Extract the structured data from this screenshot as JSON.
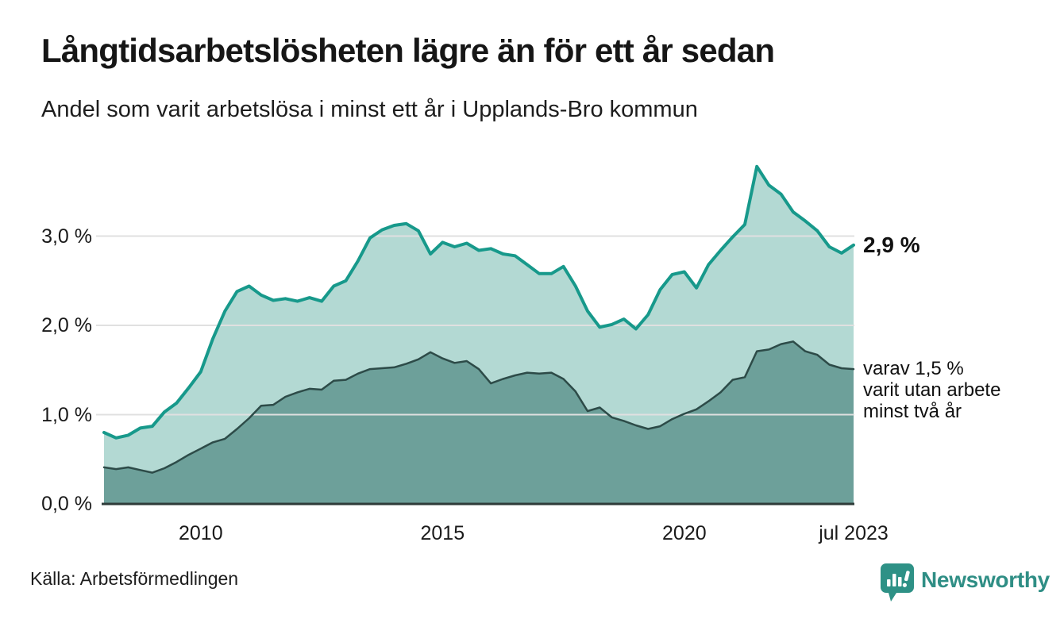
{
  "header": {
    "title": "Långtidsarbetslösheten lägre än för ett år sedan",
    "subtitle": "Andel som varit arbetslösa i minst ett år i Upplands-Bro kommun"
  },
  "annotations": {
    "end_value": "2,9 %",
    "note": "varav 1,5 %\nvarit utan arbete\nminst två år"
  },
  "footer": {
    "source": "Källa: Arbetsförmedlingen",
    "brand": "Newsworthy"
  },
  "colors": {
    "accent_teal": "#17998b",
    "fill_light": "#b3d9d3",
    "fill_dark": "#6da09a",
    "line_dark": "#2d4b48",
    "gridline": "#e0e0e0",
    "axis": "#2e3b39",
    "brand_teal": "#2e9186",
    "text": "#161616"
  },
  "chart_data": {
    "type": "area",
    "title": "Långtidsarbetslösheten lägre än för ett år sedan",
    "subtitle": "Andel som varit arbetslösa i minst ett år i Upplands-Bro kommun",
    "xlabel": "",
    "ylabel": "",
    "x_unit": "decimal_year",
    "x_range": [
      2008.0,
      2023.5
    ],
    "ylim": [
      0,
      3.9
    ],
    "grid": "horizontal",
    "legend_position": "none",
    "y_ticks": [
      {
        "label": "0,0 %",
        "value": 0
      },
      {
        "label": "1,0 %",
        "value": 1
      },
      {
        "label": "2,0 %",
        "value": 2
      },
      {
        "label": "3,0 %",
        "value": 3
      }
    ],
    "x_ticks": [
      {
        "label": "2010",
        "t": 2010
      },
      {
        "label": "2015",
        "t": 2015
      },
      {
        "label": "2020",
        "t": 2020
      },
      {
        "label": "jul 2023",
        "t": 2023.5
      }
    ],
    "x_start": 2008.0,
    "x_step_years": 0.25,
    "series": [
      {
        "name": "Andel arbetslösa minst ett år",
        "end_label": "2,9 %",
        "line_color": "#17998b",
        "fill_color": "#b3d9d3",
        "line_width": 4,
        "values": [
          0.8,
          0.74,
          0.77,
          0.85,
          0.87,
          1.03,
          1.13,
          1.3,
          1.48,
          1.85,
          2.16,
          2.38,
          2.44,
          2.34,
          2.28,
          2.3,
          2.27,
          2.31,
          2.27,
          2.44,
          2.5,
          2.72,
          2.98,
          3.07,
          3.12,
          3.14,
          3.06,
          2.8,
          2.93,
          2.88,
          2.92,
          2.84,
          2.86,
          2.8,
          2.78,
          2.68,
          2.58,
          2.58,
          2.66,
          2.44,
          2.16,
          1.98,
          2.01,
          2.07,
          1.96,
          2.12,
          2.4,
          2.57,
          2.6,
          2.42,
          2.68,
          2.84,
          2.99,
          3.13,
          3.78,
          3.57,
          3.47,
          3.27,
          3.17,
          3.06,
          2.88,
          2.81,
          2.9
        ]
      },
      {
        "name": "varav utan arbete minst två år",
        "end_label": "varav 1,5 % varit utan arbete minst två år",
        "line_color": "#2d4b48",
        "fill_color": "#6da09a",
        "line_width": 2.5,
        "values": [
          0.41,
          0.39,
          0.41,
          0.38,
          0.35,
          0.4,
          0.47,
          0.55,
          0.62,
          0.69,
          0.73,
          0.84,
          0.96,
          1.1,
          1.11,
          1.2,
          1.25,
          1.29,
          1.28,
          1.38,
          1.39,
          1.46,
          1.51,
          1.52,
          1.53,
          1.57,
          1.62,
          1.7,
          1.63,
          1.58,
          1.6,
          1.51,
          1.35,
          1.4,
          1.44,
          1.47,
          1.46,
          1.47,
          1.4,
          1.26,
          1.04,
          1.08,
          0.97,
          0.93,
          0.88,
          0.84,
          0.87,
          0.95,
          1.01,
          1.06,
          1.15,
          1.25,
          1.39,
          1.42,
          1.71,
          1.73,
          1.79,
          1.82,
          1.71,
          1.67,
          1.56,
          1.52,
          1.51
        ]
      }
    ]
  }
}
